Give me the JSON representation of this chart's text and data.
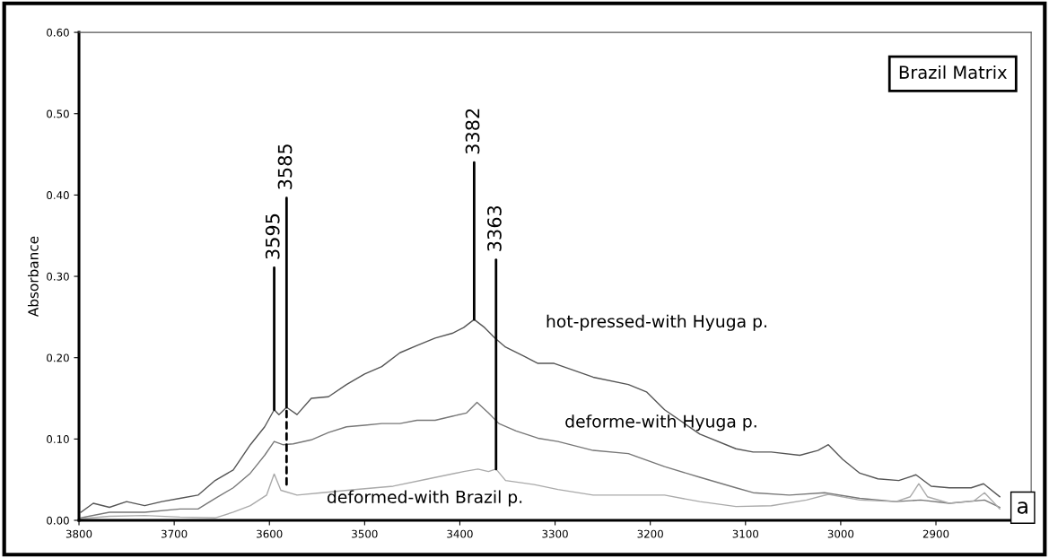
{
  "chart_data": {
    "type": "line",
    "ylabel": "Absorbance",
    "xlim": [
      3800,
      2800
    ],
    "ylim": [
      0,
      0.6
    ],
    "xticks": [
      3800,
      3700,
      3600,
      3500,
      3400,
      3300,
      3200,
      3100,
      3000,
      2900
    ],
    "yticks": [
      {
        "value": 0,
        "label": "0.00"
      },
      {
        "value": 0.1,
        "label": "0.10"
      },
      {
        "value": 0.2,
        "label": "0.20"
      },
      {
        "value": 0.3,
        "label": "0.30"
      },
      {
        "value": 0.4,
        "label": "0.40"
      },
      {
        "value": 0.5,
        "label": "0.50"
      },
      {
        "value": 0.6,
        "label": "0.60"
      }
    ],
    "grid": false,
    "marker": "none",
    "line_style": "solid",
    "series": [
      {
        "name": "hot-pressed-with Hyuga p.",
        "color": "#555555",
        "x": [
          3798,
          3785,
          3768,
          3750,
          3731,
          3713,
          3694,
          3675,
          3657,
          3638,
          3620,
          3605,
          3595,
          3590,
          3582,
          3571,
          3556,
          3538,
          3519,
          3500,
          3482,
          3463,
          3445,
          3426,
          3408,
          3396,
          3385,
          3374,
          3363,
          3352,
          3333,
          3318,
          3301,
          3260,
          3223,
          3204,
          3185,
          3148,
          3110,
          3092,
          3073,
          3043,
          3024,
          3013,
          2998,
          2980,
          2961,
          2939,
          2921,
          2905,
          2886,
          2863,
          2850,
          2833
        ],
        "values": [
          0.01,
          0.021,
          0.016,
          0.023,
          0.018,
          0.023,
          0.027,
          0.031,
          0.049,
          0.062,
          0.093,
          0.115,
          0.136,
          0.13,
          0.139,
          0.13,
          0.15,
          0.152,
          0.167,
          0.18,
          0.189,
          0.206,
          0.215,
          0.224,
          0.23,
          0.237,
          0.247,
          0.237,
          0.224,
          0.213,
          0.202,
          0.193,
          0.193,
          0.176,
          0.167,
          0.158,
          0.136,
          0.106,
          0.088,
          0.084,
          0.084,
          0.08,
          0.086,
          0.093,
          0.075,
          0.058,
          0.051,
          0.049,
          0.056,
          0.042,
          0.04,
          0.04,
          0.045,
          0.029
        ]
      },
      {
        "name": "deforme-with Hyuga p.",
        "color": "#777777",
        "x": [
          3798,
          3768,
          3731,
          3694,
          3675,
          3657,
          3638,
          3620,
          3605,
          3595,
          3586,
          3575,
          3556,
          3538,
          3519,
          3500,
          3482,
          3463,
          3445,
          3426,
          3408,
          3393,
          3382,
          3370,
          3359,
          3341,
          3318,
          3297,
          3260,
          3223,
          3185,
          3148,
          3110,
          3092,
          3054,
          3017,
          2980,
          2942,
          2916,
          2886,
          2849,
          2833
        ],
        "values": [
          0.003,
          0.01,
          0.01,
          0.014,
          0.014,
          0.027,
          0.04,
          0.058,
          0.08,
          0.097,
          0.093,
          0.094,
          0.099,
          0.108,
          0.115,
          0.117,
          0.119,
          0.119,
          0.123,
          0.123,
          0.128,
          0.132,
          0.145,
          0.132,
          0.119,
          0.11,
          0.101,
          0.097,
          0.086,
          0.082,
          0.066,
          0.053,
          0.04,
          0.034,
          0.031,
          0.034,
          0.027,
          0.023,
          0.025,
          0.021,
          0.025,
          0.016
        ]
      },
      {
        "name": "deformed-with Brazil p.",
        "color": "#aaaaaa",
        "x": [
          3798,
          3768,
          3731,
          3694,
          3657,
          3638,
          3620,
          3603,
          3595,
          3588,
          3571,
          3545,
          3508,
          3470,
          3433,
          3396,
          3381,
          3370,
          3362,
          3352,
          3322,
          3297,
          3260,
          3223,
          3185,
          3148,
          3110,
          3073,
          3036,
          3013,
          2980,
          2942,
          2927,
          2918,
          2909,
          2886,
          2860,
          2849,
          2833
        ],
        "values": [
          0.002,
          0.005,
          0.006,
          0.004,
          0.003,
          0.01,
          0.018,
          0.031,
          0.057,
          0.037,
          0.031,
          0.034,
          0.038,
          0.042,
          0.051,
          0.06,
          0.063,
          0.06,
          0.063,
          0.049,
          0.044,
          0.038,
          0.031,
          0.031,
          0.031,
          0.023,
          0.017,
          0.018,
          0.025,
          0.032,
          0.025,
          0.023,
          0.029,
          0.045,
          0.029,
          0.021,
          0.024,
          0.034,
          0.014
        ]
      }
    ],
    "annotations": [
      {
        "text": "3595",
        "x": 3595,
        "y": 0.136
      },
      {
        "text": "3585",
        "x": 3582,
        "y": 0.139
      },
      {
        "text": "3382",
        "x": 3385,
        "y": 0.247
      },
      {
        "text": "3363",
        "x": 3362,
        "y": 0.063
      },
      "Brazil Matrix",
      "a"
    ]
  }
}
